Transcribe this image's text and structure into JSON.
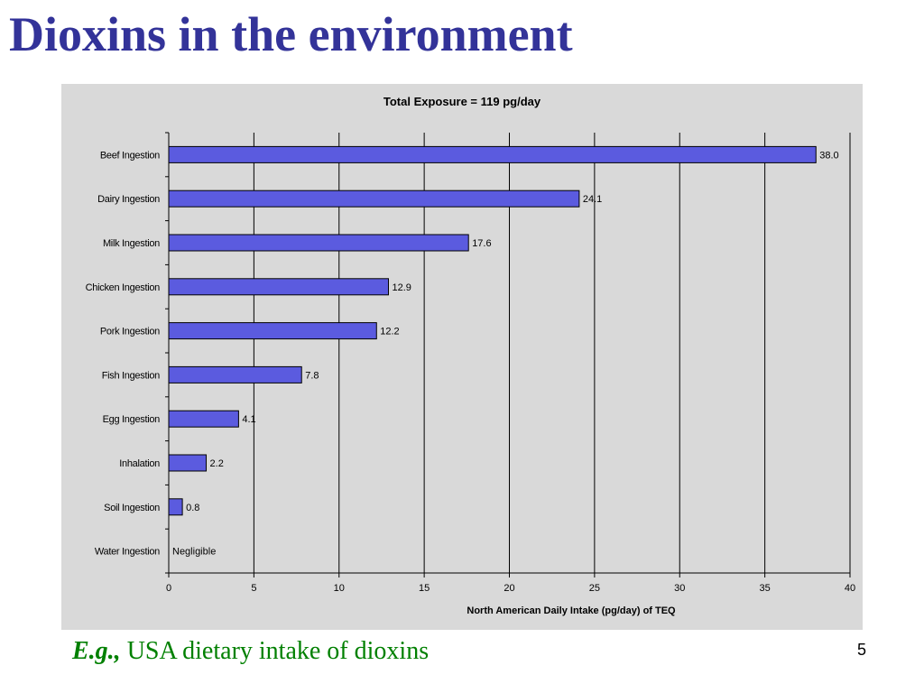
{
  "slide": {
    "title": "Dioxins in the environment",
    "caption_prefix": "E.g.,",
    "caption_text": "USA dietary intake of dioxins",
    "page_number": "5"
  },
  "colors": {
    "title": "#333399",
    "caption": "#008000",
    "chart_background": "#d9d9d9",
    "bar_fill": "#5b5bdf",
    "bar_stroke": "#000000",
    "gridline": "#000000"
  },
  "chart_data": {
    "type": "bar",
    "orientation": "horizontal",
    "title": "Total Exposure = 119 pg/day",
    "xlabel": "North American Daily Intake (pg/day) of TEQ",
    "ylabel": "",
    "xlim": [
      0,
      40
    ],
    "xticks": [
      0,
      5,
      10,
      15,
      20,
      25,
      30,
      35,
      40
    ],
    "grid": "vertical",
    "categories": [
      "Beef Ingestion",
      "Dairy Ingestion",
      "Milk Ingestion",
      "Chicken Ingestion",
      "Pork Ingestion",
      "Fish Ingestion",
      "Egg Ingestion",
      "Inhalation",
      "Soil Ingestion",
      "Water Ingestion"
    ],
    "values": [
      38.0,
      24.1,
      17.6,
      12.9,
      12.2,
      7.8,
      4.1,
      2.2,
      0.8,
      null
    ],
    "data_labels": [
      "38.0",
      "24.1",
      "17.6",
      "12.9",
      "12.2",
      "7.8",
      "4.1",
      "2.2",
      "0.8",
      "Negligible"
    ]
  }
}
